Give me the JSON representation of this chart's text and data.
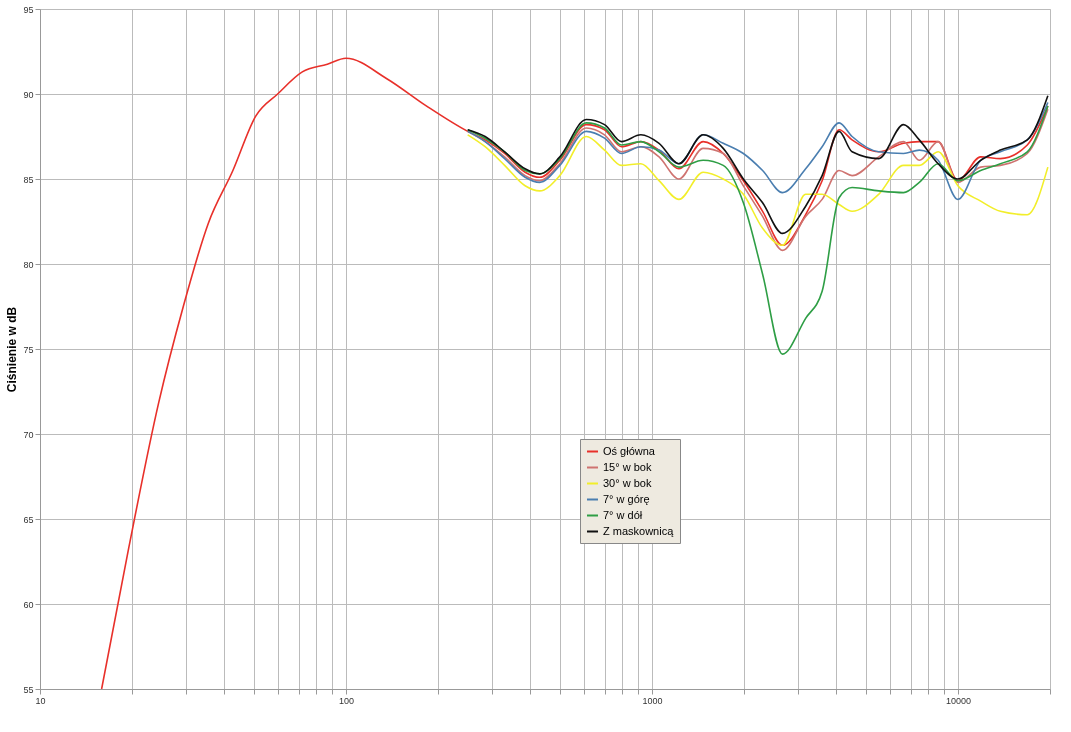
{
  "chart_data": {
    "type": "line",
    "ylabel": "Ciśnienie w dB",
    "log": "x",
    "grid": true,
    "legend": "bottom",
    "line_style": "solid",
    "marker": "none",
    "xlim": [
      10,
      20000
    ],
    "xticks": [
      10,
      {
        "value": 20,
        "label": null
      },
      {
        "value": 30,
        "label": null
      },
      {
        "value": 40,
        "label": null
      },
      {
        "value": 50,
        "label": null
      },
      {
        "value": 60,
        "label": null
      },
      {
        "value": 70,
        "label": null
      },
      {
        "value": 80,
        "label": null
      },
      {
        "value": 90,
        "label": null
      },
      100,
      {
        "value": 200,
        "label": null
      },
      {
        "value": 300,
        "label": null
      },
      {
        "value": 400,
        "label": null
      },
      {
        "value": 500,
        "label": null
      },
      {
        "value": 600,
        "label": null
      },
      {
        "value": 700,
        "label": null
      },
      {
        "value": 800,
        "label": null
      },
      {
        "value": 900,
        "label": null
      },
      1000,
      {
        "value": 2000,
        "label": null
      },
      {
        "value": 3000,
        "label": null
      },
      {
        "value": 4000,
        "label": null
      },
      {
        "value": 5000,
        "label": null
      },
      {
        "value": 6000,
        "label": null
      },
      {
        "value": 7000,
        "label": null
      },
      {
        "value": 8000,
        "label": null
      },
      {
        "value": 9000,
        "label": null
      },
      10000,
      {
        "value": 20000,
        "label": null
      }
    ],
    "ylim": [
      55,
      95
    ],
    "yticks": [
      55,
      60,
      65,
      70,
      75,
      80,
      85,
      90,
      95
    ],
    "x": [
      250,
      285,
      330,
      385,
      430,
      500,
      610,
      700,
      795,
      920,
      1055,
      1225,
      1470,
      1710,
      1990,
      2300,
      2670,
      3180,
      3600,
      4090,
      4510,
      5510,
      6640,
      7480,
      8620,
      10000,
      11870,
      13770,
      16860,
      19680
    ],
    "series": [
      {
        "name": "Oś główna",
        "color": "#e8302a",
        "x": [
          15.9,
          19.5,
          24.4,
          29.4,
          35.5,
          42.7,
          50.7,
          59.8,
          72,
          86.9,
          100,
          136,
          183,
          250,
          285,
          330,
          385,
          430,
          500,
          610,
          700,
          795,
          920,
          1055,
          1225,
          1470,
          1710,
          1990,
          2300,
          2670,
          3180,
          3600,
          4090,
          4510,
          5510,
          6640,
          7480,
          8620,
          10000,
          11870,
          13770,
          16860,
          19680
        ],
        "values": [
          55,
          63.3,
          71.8,
          77.5,
          82.4,
          85.5,
          88.7,
          90.0,
          91.3,
          91.75,
          92.1,
          90.9,
          89.3,
          87.8,
          87.3,
          86.5,
          85.4,
          85.1,
          86.1,
          88.2,
          87.9,
          86.9,
          87.2,
          86.7,
          85.6,
          87.2,
          86.5,
          84.9,
          83.1,
          81.1,
          82.9,
          84.9,
          87.9,
          87.3,
          86.6,
          87.1,
          87.2,
          87.2,
          84.9,
          86.3,
          86.2,
          87.0,
          89.3
        ]
      },
      {
        "name": "15° w bok",
        "color": "#cf7370",
        "values": [
          87.8,
          87.2,
          86.3,
          85.2,
          84.9,
          85.9,
          88.0,
          87.6,
          86.6,
          86.9,
          86.3,
          85.0,
          86.8,
          86.5,
          84.6,
          82.8,
          80.8,
          82.8,
          83.8,
          85.5,
          85.2,
          86.3,
          87.2,
          86.1,
          87.2,
          84.8,
          85.7,
          85.8,
          86.5,
          89.1
        ]
      },
      {
        "name": "30° w bok",
        "color": "#f2ee2a",
        "values": [
          87.6,
          86.9,
          85.8,
          84.6,
          84.3,
          85.2,
          87.5,
          86.7,
          85.8,
          85.9,
          84.9,
          83.8,
          85.4,
          85.0,
          84.1,
          82.1,
          81.1,
          84.1,
          84.1,
          83.5,
          83.1,
          84.1,
          85.8,
          85.8,
          86.6,
          84.6,
          83.7,
          83.1,
          82.9,
          85.7
        ]
      },
      {
        "name": "7° w górę",
        "color": "#4a7eb0",
        "values": [
          87.8,
          87.2,
          86.2,
          85.1,
          84.8,
          85.8,
          87.8,
          87.4,
          86.5,
          86.9,
          86.7,
          85.9,
          87.6,
          87.1,
          86.5,
          85.5,
          84.2,
          85.6,
          86.9,
          88.3,
          87.5,
          86.6,
          86.5,
          86.7,
          86.1,
          83.8,
          86.1,
          86.6,
          87.3,
          89.5
        ]
      },
      {
        "name": "7° w dół",
        "color": "#2e9e45",
        "values": [
          87.9,
          87.4,
          86.6,
          85.5,
          85.3,
          86.2,
          88.3,
          88.0,
          87.0,
          87.2,
          86.6,
          85.7,
          86.1,
          85.8,
          83.6,
          79.4,
          74.7,
          76.8,
          78.4,
          83.9,
          84.5,
          84.3,
          84.2,
          84.8,
          85.9,
          84.9,
          85.5,
          85.9,
          86.6,
          89.3
        ]
      },
      {
        "name": "Z maskownicą",
        "color": "#111111",
        "values": [
          87.9,
          87.5,
          86.6,
          85.6,
          85.3,
          86.3,
          88.5,
          88.2,
          87.2,
          87.6,
          87.1,
          85.9,
          87.6,
          86.8,
          85.0,
          83.6,
          81.8,
          83.4,
          85.2,
          87.8,
          86.6,
          86.2,
          88.2,
          87.3,
          85.9,
          85.0,
          86.1,
          86.7,
          87.3,
          89.9
        ]
      }
    ]
  }
}
